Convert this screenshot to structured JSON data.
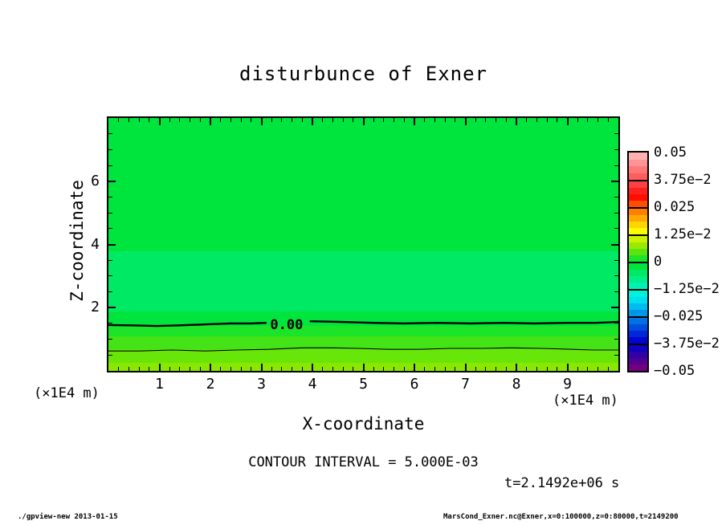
{
  "page": {
    "title": "disturbunce of Exner",
    "footer_left": "./gpview-new  2013-01-15",
    "footer_right": "MarsCond_Exner.nc@Exner,x=0:100000,z=0:80000,t=2149200"
  },
  "chart_data": {
    "type": "heatmap",
    "title": "disturbunce of Exner",
    "xlabel": "X-coordinate",
    "ylabel": "Z-coordinate",
    "x_unit_label": "(×1E4 m)",
    "y_unit_label": "(×1E4 m)",
    "xlim": [
      0,
      10
    ],
    "ylim": [
      0,
      8
    ],
    "grid": false,
    "x_major_ticks": [
      1,
      2,
      3,
      4,
      5,
      6,
      7,
      8,
      9
    ],
    "x_minor_step": 0.2,
    "y_major_ticks": [
      2,
      4,
      6
    ],
    "y_minor_step": 0.5,
    "annotations": {
      "contour_interval": "CONTOUR INTERVAL = 5.000E-03",
      "time": "t=2.1492e+06 s",
      "zero_contour_label": "0.00"
    },
    "tone_bands": [
      {
        "z_from": 3.78,
        "z_to": 8.0,
        "color": "#00e53d",
        "approx_value": "0 to -3.1e-3"
      },
      {
        "z_from": 1.88,
        "z_to": 3.78,
        "color": "#00e964",
        "approx_value": "-3.1e-3 to -6.3e-3"
      },
      {
        "z_from": 1.42,
        "z_to": 1.88,
        "color": "#00e53d",
        "approx_value": "0 to -3.1e-3"
      },
      {
        "z_from": 1.09,
        "z_to": 1.42,
        "color": "#1ce428",
        "approx_value": "0 to 3.1e-3"
      },
      {
        "z_from": 0.69,
        "z_to": 1.09,
        "color": "#44e317",
        "approx_value": "3.1e-3 to 6.3e-3"
      },
      {
        "z_from": 0.25,
        "z_to": 0.69,
        "color": "#68e60a",
        "approx_value": "6.3e-3 to 9.4e-3"
      },
      {
        "z_from": 0.0,
        "z_to": 0.25,
        "color": "#8ae800",
        "approx_value": "9.4e-3 to 1.25e-2"
      }
    ],
    "contour_lines": [
      {
        "value": 0.0,
        "label": "0.00",
        "z_approx": 1.45,
        "weight": "thick"
      },
      {
        "value": 0.005,
        "label": null,
        "z_approx": 0.68,
        "weight": "thin"
      }
    ],
    "contour_paths": [
      {
        "weight": "thick",
        "points": [
          [
            0,
            1.45
          ],
          [
            0.45,
            1.44
          ],
          [
            0.95,
            1.42
          ],
          [
            1.4,
            1.44
          ],
          [
            1.9,
            1.47
          ],
          [
            2.4,
            1.5
          ],
          [
            2.8,
            1.5
          ],
          [
            3.1,
            1.52
          ]
        ]
      },
      {
        "weight": "thick",
        "points": [
          [
            3.95,
            1.57
          ],
          [
            4.55,
            1.55
          ],
          [
            5.2,
            1.52
          ],
          [
            5.8,
            1.5
          ],
          [
            6.45,
            1.52
          ],
          [
            7.1,
            1.5
          ],
          [
            7.75,
            1.52
          ],
          [
            8.35,
            1.5
          ],
          [
            9.0,
            1.52
          ],
          [
            9.55,
            1.52
          ],
          [
            10,
            1.55
          ]
        ]
      },
      {
        "weight": "thin",
        "points": [
          [
            0,
            0.63
          ],
          [
            0.6,
            0.63
          ],
          [
            1.25,
            0.66
          ],
          [
            1.9,
            0.63
          ],
          [
            2.5,
            0.66
          ],
          [
            3.15,
            0.68
          ],
          [
            3.8,
            0.73
          ],
          [
            4.4,
            0.73
          ],
          [
            4.9,
            0.71
          ],
          [
            5.5,
            0.68
          ],
          [
            6.1,
            0.68
          ],
          [
            6.7,
            0.71
          ],
          [
            7.3,
            0.71
          ],
          [
            7.9,
            0.73
          ],
          [
            8.5,
            0.71
          ],
          [
            9.1,
            0.68
          ],
          [
            9.5,
            0.66
          ],
          [
            10,
            0.66
          ]
        ]
      }
    ],
    "zero_label_pos": {
      "x": 3.55,
      "z": 1.45
    },
    "colorbar": {
      "labels": [
        "0.05",
        "3.75e−2",
        "0.025",
        "1.25e−2",
        "0",
        "−1.25e−2",
        "−0.025",
        "−3.75e−2",
        "−0.05"
      ],
      "segments": [
        [
          "#ffb0b0",
          "#ff9494",
          "#ff7878",
          "#ff5c5c"
        ],
        [
          "#ff4040",
          "#ff2020",
          "#ff0d00",
          "#ff4d00"
        ],
        [
          "#ff8000",
          "#ffaa00",
          "#ffd400",
          "#fdfd00"
        ],
        [
          "#ccf200",
          "#99ea00",
          "#5ce40e",
          "#1ce428"
        ],
        [
          "#00e53d",
          "#00e964",
          "#00ed8b",
          "#00f1b2"
        ],
        [
          "#00f2d8",
          "#00dff2",
          "#00bcef",
          "#0096e9"
        ],
        [
          "#0072e4",
          "#004cdf",
          "#0026d9",
          "#0005d0"
        ],
        [
          "#1000bf",
          "#3000a8",
          "#520092",
          "#730080"
        ]
      ]
    }
  }
}
